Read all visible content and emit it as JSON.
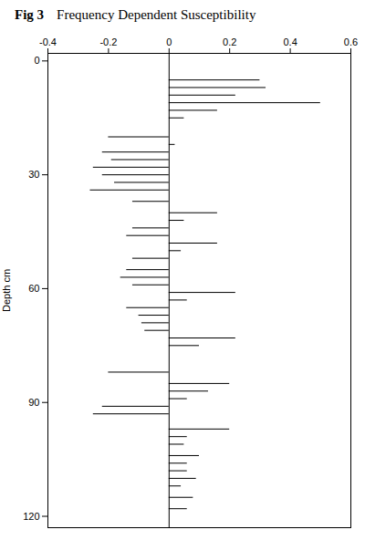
{
  "chart_data": {
    "type": "bar",
    "orientation": "horizontal",
    "title": "Fig 3",
    "subtitle": "Frequency Dependent Susceptibility",
    "ylabel": "Depth cm",
    "color": "black",
    "grid": false,
    "xlim": [
      -0.4,
      0.6
    ],
    "xticks": [
      -0.4,
      -0.2,
      0,
      0.2,
      0.4,
      0.6
    ],
    "ylim": [
      123,
      -2
    ],
    "yticks": [
      0,
      30,
      60,
      90,
      120
    ],
    "y": [
      2,
      5,
      7,
      9,
      11,
      13,
      15,
      20,
      22,
      24,
      26,
      28,
      30,
      32,
      34,
      37,
      40,
      42,
      44,
      46,
      48,
      50,
      52,
      55,
      57,
      59,
      61,
      63,
      65,
      67,
      69,
      71,
      73,
      75,
      82,
      85,
      87,
      89,
      91,
      93,
      97,
      99,
      101,
      104,
      106,
      108,
      110,
      112,
      115,
      118
    ],
    "values": [
      0.0,
      0.3,
      0.32,
      0.22,
      0.5,
      0.16,
      0.05,
      -0.2,
      0.02,
      -0.22,
      -0.19,
      -0.25,
      -0.22,
      -0.18,
      -0.26,
      -0.12,
      0.16,
      0.05,
      -0.12,
      -0.14,
      0.16,
      0.04,
      -0.12,
      -0.14,
      -0.16,
      -0.12,
      0.22,
      0.06,
      -0.14,
      -0.1,
      -0.09,
      -0.08,
      0.22,
      0.1,
      -0.2,
      0.2,
      0.13,
      0.06,
      -0.22,
      -0.25,
      0.2,
      0.06,
      0.05,
      0.1,
      0.06,
      0.06,
      0.09,
      0.04,
      0.08,
      0.06
    ]
  }
}
